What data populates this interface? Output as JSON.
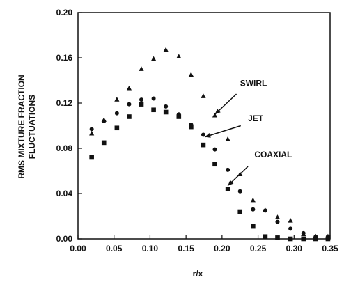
{
  "chart_data": {
    "type": "scatter",
    "title": "",
    "xlabel": "r/x",
    "ylabel_lines": [
      "RMS MIXTURE FRACTION",
      "FLUCTUATIONS"
    ],
    "xlim": [
      0.0,
      0.35
    ],
    "ylim": [
      0.0,
      0.2
    ],
    "grid": false,
    "legend": "none",
    "x_ticks": [
      "0.00",
      "0.05",
      "0.10",
      "0.15",
      "0.20",
      "0.25",
      "0.30",
      "0.35"
    ],
    "y_ticks": [
      "0.00",
      "0.04",
      "0.08",
      "0.12",
      "0.16",
      "0.20"
    ],
    "annotations": [
      {
        "label": "SWIRL",
        "text_x": 0.225,
        "text_y": 0.135,
        "arrow_from": [
          0.22,
          0.128
        ],
        "arrow_to": [
          0.19,
          0.11
        ]
      },
      {
        "label": "JET",
        "text_x": 0.236,
        "text_y": 0.104,
        "arrow_from": [
          0.226,
          0.1
        ],
        "arrow_to": [
          0.176,
          0.09
        ]
      },
      {
        "label": "COAXIAL",
        "text_x": 0.245,
        "text_y": 0.072,
        "arrow_from": [
          0.236,
          0.064
        ],
        "arrow_to": [
          0.208,
          0.047
        ]
      }
    ],
    "series": [
      {
        "marker": "triangle",
        "x": [
          0.019,
          0.036,
          0.054,
          0.071,
          0.088,
          0.105,
          0.122,
          0.14,
          0.157,
          0.174,
          0.19,
          0.208,
          0.225,
          0.243,
          0.26,
          0.277,
          0.295,
          0.313,
          0.33,
          0.347
        ],
        "y": [
          0.093,
          0.105,
          0.123,
          0.133,
          0.15,
          0.159,
          0.167,
          0.161,
          0.145,
          0.126,
          0.109,
          0.088,
          0.057,
          0.034,
          0.025,
          0.019,
          0.016,
          0.004,
          0.002,
          0.002
        ]
      },
      {
        "marker": "circle",
        "x": [
          0.019,
          0.036,
          0.054,
          0.071,
          0.088,
          0.105,
          0.122,
          0.14,
          0.157,
          0.174,
          0.19,
          0.208,
          0.225,
          0.243,
          0.26,
          0.277,
          0.295,
          0.313,
          0.33,
          0.347
        ],
        "y": [
          0.097,
          0.104,
          0.111,
          0.119,
          0.123,
          0.124,
          0.117,
          0.11,
          0.101,
          0.092,
          0.079,
          0.061,
          0.042,
          0.026,
          0.025,
          0.015,
          0.009,
          0.005,
          0.002,
          0.002
        ]
      },
      {
        "marker": "square",
        "x": [
          0.019,
          0.036,
          0.054,
          0.071,
          0.088,
          0.105,
          0.122,
          0.14,
          0.157,
          0.174,
          0.19,
          0.208,
          0.225,
          0.243,
          0.26,
          0.277,
          0.295,
          0.313,
          0.33,
          0.347
        ],
        "y": [
          0.072,
          0.085,
          0.098,
          0.108,
          0.119,
          0.114,
          0.112,
          0.108,
          0.099,
          0.083,
          0.066,
          0.044,
          0.024,
          0.011,
          0.002,
          0.001,
          0.0,
          0.0,
          0.0,
          0.0
        ]
      }
    ]
  }
}
